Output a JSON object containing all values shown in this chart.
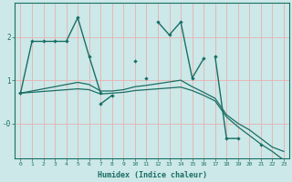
{
  "xlabel": "Humidex (Indice chaleur)",
  "bg_color": "#cce8e8",
  "grid_color": "#e8b0b0",
  "line_color": "#1a6e64",
  "x_values": [
    0,
    1,
    2,
    3,
    4,
    5,
    6,
    7,
    8,
    9,
    10,
    11,
    12,
    13,
    14,
    15,
    16,
    17,
    18,
    19,
    20,
    21,
    22,
    23
  ],
  "series1": [
    0.7,
    1.9,
    1.9,
    1.9,
    1.9,
    2.45,
    1.55,
    0.7,
    null,
    null,
    1.45,
    null,
    2.35,
    2.05,
    2.35,
    1.05,
    1.5,
    null,
    null,
    null,
    null,
    null,
    null,
    null
  ],
  "series2": [
    0.7,
    null,
    null,
    null,
    null,
    null,
    null,
    0.45,
    0.65,
    null,
    null,
    1.05,
    null,
    null,
    null,
    null,
    null,
    1.55,
    -0.35,
    -0.35,
    null,
    -0.5,
    null,
    null
  ],
  "series3": [
    0.7,
    0.75,
    0.8,
    0.85,
    0.9,
    0.95,
    0.9,
    0.75,
    0.75,
    0.78,
    0.85,
    0.88,
    0.92,
    0.96,
    1.0,
    0.85,
    0.72,
    0.58,
    0.2,
    0.0,
    -0.15,
    -0.35,
    -0.55,
    -0.65
  ],
  "series4": [
    0.7,
    0.72,
    0.74,
    0.76,
    0.78,
    0.8,
    0.78,
    0.68,
    0.7,
    0.72,
    0.76,
    0.78,
    0.8,
    0.82,
    0.84,
    0.76,
    0.65,
    0.52,
    0.15,
    -0.08,
    -0.28,
    -0.48,
    -0.65,
    -0.85
  ],
  "ylim": [
    -0.8,
    2.8
  ],
  "yticks": [
    0.0,
    1.0,
    2.0
  ],
  "ytick_labels": [
    "-0",
    "1",
    "2"
  ]
}
